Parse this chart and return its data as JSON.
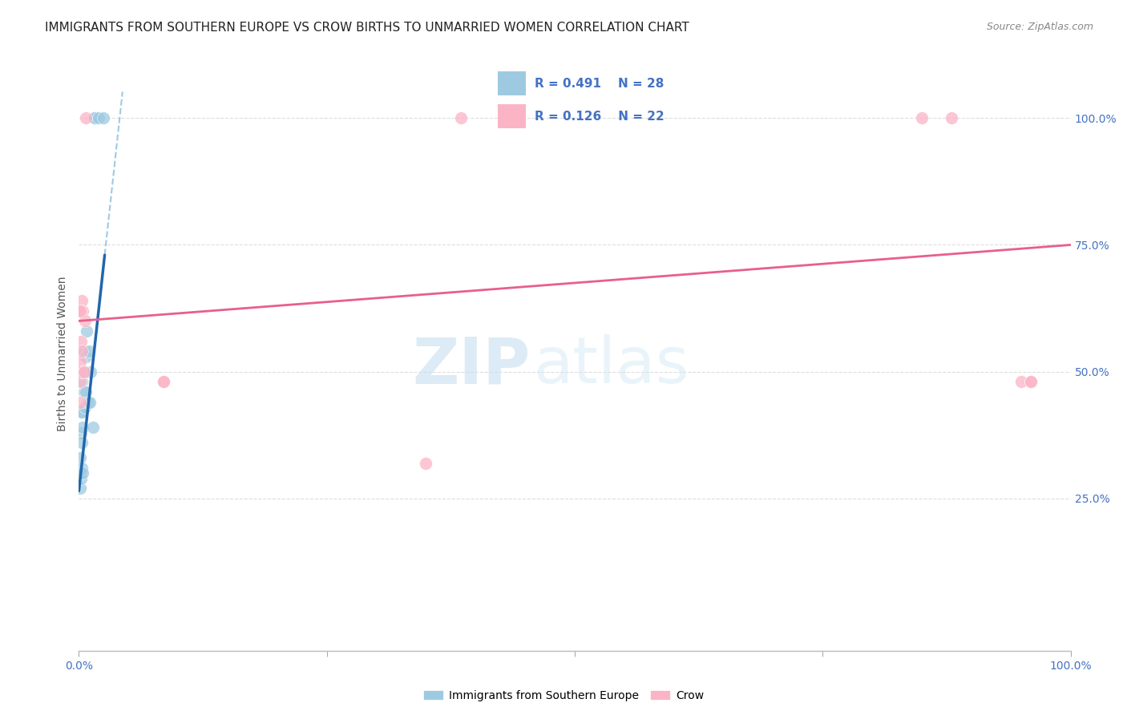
{
  "title": "IMMIGRANTS FROM SOUTHERN EUROPE VS CROW BIRTHS TO UNMARRIED WOMEN CORRELATION CHART",
  "source": "Source: ZipAtlas.com",
  "ylabel": "Births to Unmarried Women",
  "legend_labels": [
    "Immigrants from Southern Europe",
    "Crow"
  ],
  "legend_r_blue": "R = 0.491",
  "legend_n_blue": "N = 28",
  "legend_r_pink": "R = 0.126",
  "legend_n_pink": "N = 22",
  "blue_color": "#9ecae1",
  "pink_color": "#fbb4c6",
  "blue_line_color": "#2166ac",
  "pink_line_color": "#e8608a",
  "dashed_line_color": "#9ecae1",
  "watermark_zip": "ZIP",
  "watermark_atlas": "atlas",
  "background_color": "#ffffff",
  "grid_color": "#dddddd",
  "blue_scatter_x": [
    0.001,
    0.001,
    0.002,
    0.002,
    0.003,
    0.003,
    0.004,
    0.005,
    0.005,
    0.006,
    0.006,
    0.007,
    0.007,
    0.008,
    0.009,
    0.01,
    0.011,
    0.012,
    0.014,
    0.016,
    0.016,
    0.02,
    0.025,
    0.001,
    0.002,
    0.003,
    0.003,
    0.004
  ],
  "blue_scatter_y": [
    0.3,
    0.33,
    0.38,
    0.42,
    0.42,
    0.48,
    0.39,
    0.46,
    0.54,
    0.43,
    0.5,
    0.46,
    0.53,
    0.58,
    0.44,
    0.54,
    0.44,
    0.5,
    0.39,
    1.0,
    1.0,
    1.0,
    1.0,
    0.27,
    0.29,
    0.36,
    0.31,
    0.3
  ],
  "pink_scatter_x": [
    0.001,
    0.001,
    0.001,
    0.001,
    0.002,
    0.002,
    0.003,
    0.003,
    0.004,
    0.005,
    0.006,
    0.007,
    0.085,
    0.085,
    0.35,
    0.385,
    0.85,
    0.88,
    0.95,
    0.96,
    0.96,
    0.001
  ],
  "pink_scatter_y": [
    0.44,
    0.48,
    0.52,
    0.62,
    0.5,
    0.56,
    0.54,
    0.64,
    0.62,
    0.5,
    0.6,
    1.0,
    0.48,
    0.48,
    0.32,
    1.0,
    1.0,
    1.0,
    0.48,
    0.48,
    0.48,
    0.62
  ],
  "blue_line_x0": 0.0,
  "blue_line_x1": 0.026,
  "blue_line_y0": 0.265,
  "blue_line_y1": 0.73,
  "dashed_line_x0": 0.026,
  "dashed_line_x1": 0.044,
  "pink_line_x0": 0.0,
  "pink_line_x1": 1.0,
  "pink_line_y0": 0.6,
  "pink_line_y1": 0.75,
  "xlim": [
    0.0,
    1.0
  ],
  "ylim": [
    -0.05,
    1.12
  ],
  "x_ticks": [
    0.0,
    0.25,
    0.5,
    0.75,
    1.0
  ],
  "y_ticks": [
    0.25,
    0.5,
    0.75,
    1.0
  ],
  "x_tick_labels": [
    "0.0%",
    "",
    "",
    "",
    "100.0%"
  ],
  "y_tick_labels": [
    "25.0%",
    "50.0%",
    "75.0%",
    "100.0%"
  ],
  "title_fontsize": 11,
  "axis_label_fontsize": 10,
  "tick_fontsize": 10,
  "tick_color": "#4472c4",
  "legend_fontsize": 11,
  "legend_r_color": "#4472c4"
}
